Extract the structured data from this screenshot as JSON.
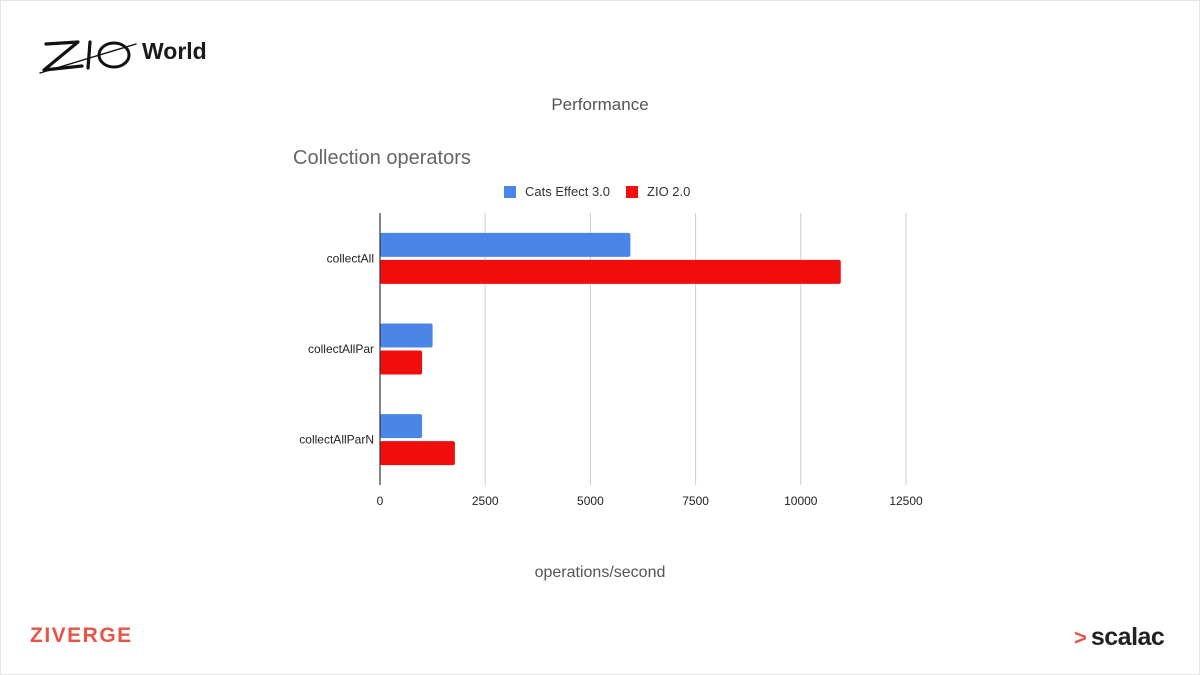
{
  "header": {
    "logo_text": "ZIO",
    "world_label": "World",
    "slide_title": "Performance"
  },
  "footer": {
    "left_logo": "ZIVERGE",
    "right_logo": "scalac"
  },
  "colors": {
    "cats_effect": "#4a86e8",
    "zio": "#f20d0d",
    "brand_red": "#e8544a"
  },
  "chart_data": {
    "type": "bar",
    "orientation": "horizontal",
    "title": "Collection operators",
    "xlabel": "operations/second",
    "ylabel": "",
    "categories": [
      "collectAll",
      "collectAllPar",
      "collectAllParN"
    ],
    "series": [
      {
        "name": "Cats Effect 3.0",
        "color": "#4a86e8",
        "values": [
          5950,
          1250,
          1000
        ]
      },
      {
        "name": "ZIO 2.0",
        "color": "#f20d0d",
        "values": [
          10950,
          1000,
          1780
        ]
      }
    ],
    "xlim": [
      0,
      12500
    ],
    "x_ticks": [
      0,
      2500,
      5000,
      7500,
      10000,
      12500
    ],
    "x_tick_labels": [
      "0",
      "2500",
      "5000",
      "7500",
      "10000",
      "12500"
    ],
    "grid": true,
    "legend_position": "top"
  }
}
